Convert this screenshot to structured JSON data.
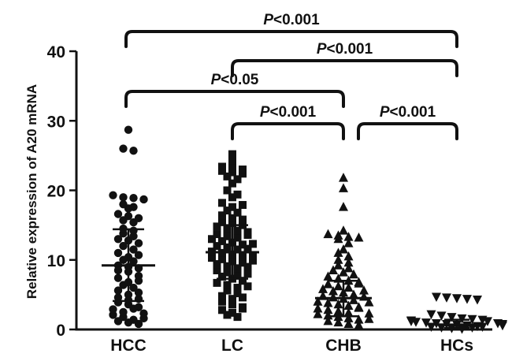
{
  "chart_data": {
    "type": "scatter",
    "subtype": "dot-plot",
    "ylabel": "Relative  expression of A20 mRNA",
    "ylim": [
      0,
      40
    ],
    "yticks": [
      0,
      10,
      20,
      30,
      40
    ],
    "categories": [
      "HCC",
      "LC",
      "CHB",
      "HCs"
    ],
    "colors": {
      "ink": "#111111"
    },
    "groups": [
      {
        "name": "HCC",
        "marker": "circle",
        "mean": 9.2,
        "sd_low": 4.1,
        "sd_high": 14.4,
        "values": [
          28.7,
          26.0,
          25.7,
          19.3,
          19.0,
          18.9,
          18.7,
          18.0,
          17.6,
          17.4,
          16.6,
          16.3,
          15.7,
          15.4,
          14.5,
          14.2,
          13.8,
          13.0,
          12.8,
          12.4,
          12.0,
          11.5,
          11.0,
          10.4,
          10.0,
          9.8,
          9.2,
          9.0,
          8.5,
          8.3,
          7.7,
          7.4,
          6.8,
          6.4,
          6.0,
          5.6,
          5.0,
          4.6,
          4.2,
          3.9,
          3.6,
          3.2,
          2.9,
          2.5,
          2.1,
          1.8,
          1.4,
          1.2,
          1.0,
          0.8,
          4.4,
          5.3,
          7.0,
          8.8,
          10.7,
          13.4,
          16.0,
          3.0,
          2.3,
          1.6
        ]
      },
      {
        "name": "LC",
        "marker": "square",
        "mean": 11.1,
        "sd_low": 7.3,
        "sd_high": 15.0,
        "values": [
          25.2,
          24.3,
          23.4,
          23.2,
          23.0,
          22.8,
          22.6,
          22.4,
          22.0,
          21.6,
          21.0,
          20.0,
          19.4,
          19.0,
          18.2,
          17.6,
          17.1,
          16.8,
          16.4,
          16.0,
          15.6,
          15.3,
          15.0,
          14.8,
          14.5,
          14.2,
          14.0,
          13.7,
          13.4,
          13.2,
          13.0,
          12.7,
          12.5,
          12.2,
          12.0,
          11.8,
          11.5,
          11.2,
          11.0,
          10.8,
          10.5,
          10.3,
          10.1,
          9.8,
          9.6,
          9.4,
          9.1,
          8.8,
          8.5,
          8.2,
          7.9,
          7.6,
          7.3,
          7.0,
          6.7,
          6.4,
          6.0,
          5.6,
          5.2,
          4.8,
          4.4,
          4.0,
          3.6,
          3.2,
          2.8,
          2.4,
          2.1,
          1.8,
          13.6,
          12.3,
          11.6,
          10.6,
          9.9,
          9.0,
          8.0,
          6.2,
          4.6,
          3.0,
          17.9,
          15.8
        ]
      },
      {
        "name": "CHB",
        "marker": "triangle-up",
        "mean": 4.5,
        "sd_low": 1.9,
        "sd_high": 7.0,
        "values": [
          21.8,
          20.3,
          17.6,
          14.2,
          13.7,
          13.5,
          13.3,
          13.2,
          13.0,
          12.4,
          11.5,
          11.0,
          10.5,
          10.0,
          9.6,
          9.2,
          8.8,
          8.5,
          8.2,
          7.9,
          7.6,
          7.3,
          7.0,
          6.8,
          6.5,
          6.2,
          6.0,
          5.8,
          5.5,
          5.3,
          5.0,
          4.8,
          4.6,
          4.4,
          4.2,
          4.0,
          3.8,
          3.6,
          3.4,
          3.2,
          3.0,
          2.8,
          2.6,
          2.4,
          2.2,
          2.0,
          1.8,
          1.6,
          1.4,
          1.2,
          1.0,
          0.8,
          6.6,
          5.6,
          4.7,
          3.9,
          3.1,
          2.3,
          1.5,
          0.6
        ]
      },
      {
        "name": "HCs",
        "marker": "triangle-down",
        "mean": 0.7,
        "sd_low": 0.2,
        "sd_high": 1.4,
        "values": [
          4.7,
          4.6,
          4.5,
          4.4,
          4.3,
          2.2,
          2.0,
          1.8,
          1.6,
          1.5,
          1.4,
          1.3,
          1.2,
          1.1,
          1.0,
          0.9,
          0.8,
          0.7,
          0.6,
          0.5,
          0.4,
          0.3,
          0.2,
          0.1,
          1.2,
          0.9,
          0.6,
          0.3,
          0.8,
          0.4
        ]
      }
    ],
    "comparisons": [
      {
        "from": "HCC",
        "to": "HCs",
        "label_p": "P",
        "label_rest": "<0.001"
      },
      {
        "from": "LC",
        "to": "HCs",
        "label_p": "P",
        "label_rest": "<0.001"
      },
      {
        "from": "HCC",
        "to": "CHB",
        "label_p": "P",
        "label_rest": "<0.05"
      },
      {
        "from": "LC",
        "to": "CHB",
        "label_p": "P",
        "label_rest": "<0.001"
      },
      {
        "from": "CHB",
        "to": "HCs",
        "label_p": "P",
        "label_rest": "<0.001"
      }
    ]
  }
}
